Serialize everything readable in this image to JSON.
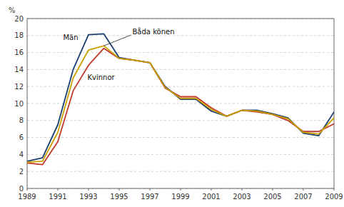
{
  "chart_data": {
    "type": "line",
    "y_label": "%",
    "x": [
      1989,
      1990,
      1991,
      1992,
      1993,
      1994,
      1995,
      1996,
      1997,
      1998,
      1999,
      2000,
      2001,
      2002,
      2003,
      2004,
      2005,
      2006,
      2007,
      2008,
      2009
    ],
    "series": [
      {
        "name": "Män",
        "color": "#1a3f6e",
        "values": [
          3.2,
          3.6,
          7.5,
          14.0,
          18.1,
          18.2,
          15.4,
          15.1,
          14.8,
          12.0,
          10.5,
          10.5,
          9.1,
          8.5,
          9.2,
          9.2,
          8.8,
          8.3,
          6.5,
          6.2,
          9.0
        ]
      },
      {
        "name": "Kvinnor",
        "color": "#c0392b",
        "values": [
          3.0,
          2.8,
          5.5,
          11.5,
          14.5,
          16.5,
          15.3,
          15.1,
          14.8,
          11.8,
          10.8,
          10.8,
          9.5,
          8.5,
          9.2,
          9.0,
          8.7,
          8.0,
          6.7,
          6.7,
          7.6
        ]
      },
      {
        "name": "Båda könen",
        "color": "#c8a000",
        "values": [
          3.1,
          3.2,
          6.6,
          13.0,
          16.3,
          16.8,
          15.3,
          15.1,
          14.8,
          11.9,
          10.6,
          10.6,
          9.3,
          8.5,
          9.2,
          9.1,
          8.7,
          8.2,
          6.6,
          6.4,
          8.3
        ]
      }
    ],
    "xlim": [
      1989,
      2009
    ],
    "xticks": [
      1989,
      1991,
      1993,
      1995,
      1997,
      1999,
      2001,
      2003,
      2005,
      2007,
      2009
    ],
    "ylim": [
      0,
      20
    ],
    "yticks": [
      0,
      2,
      4,
      6,
      8,
      10,
      12,
      14,
      16,
      18,
      20
    ],
    "grid": true
  }
}
